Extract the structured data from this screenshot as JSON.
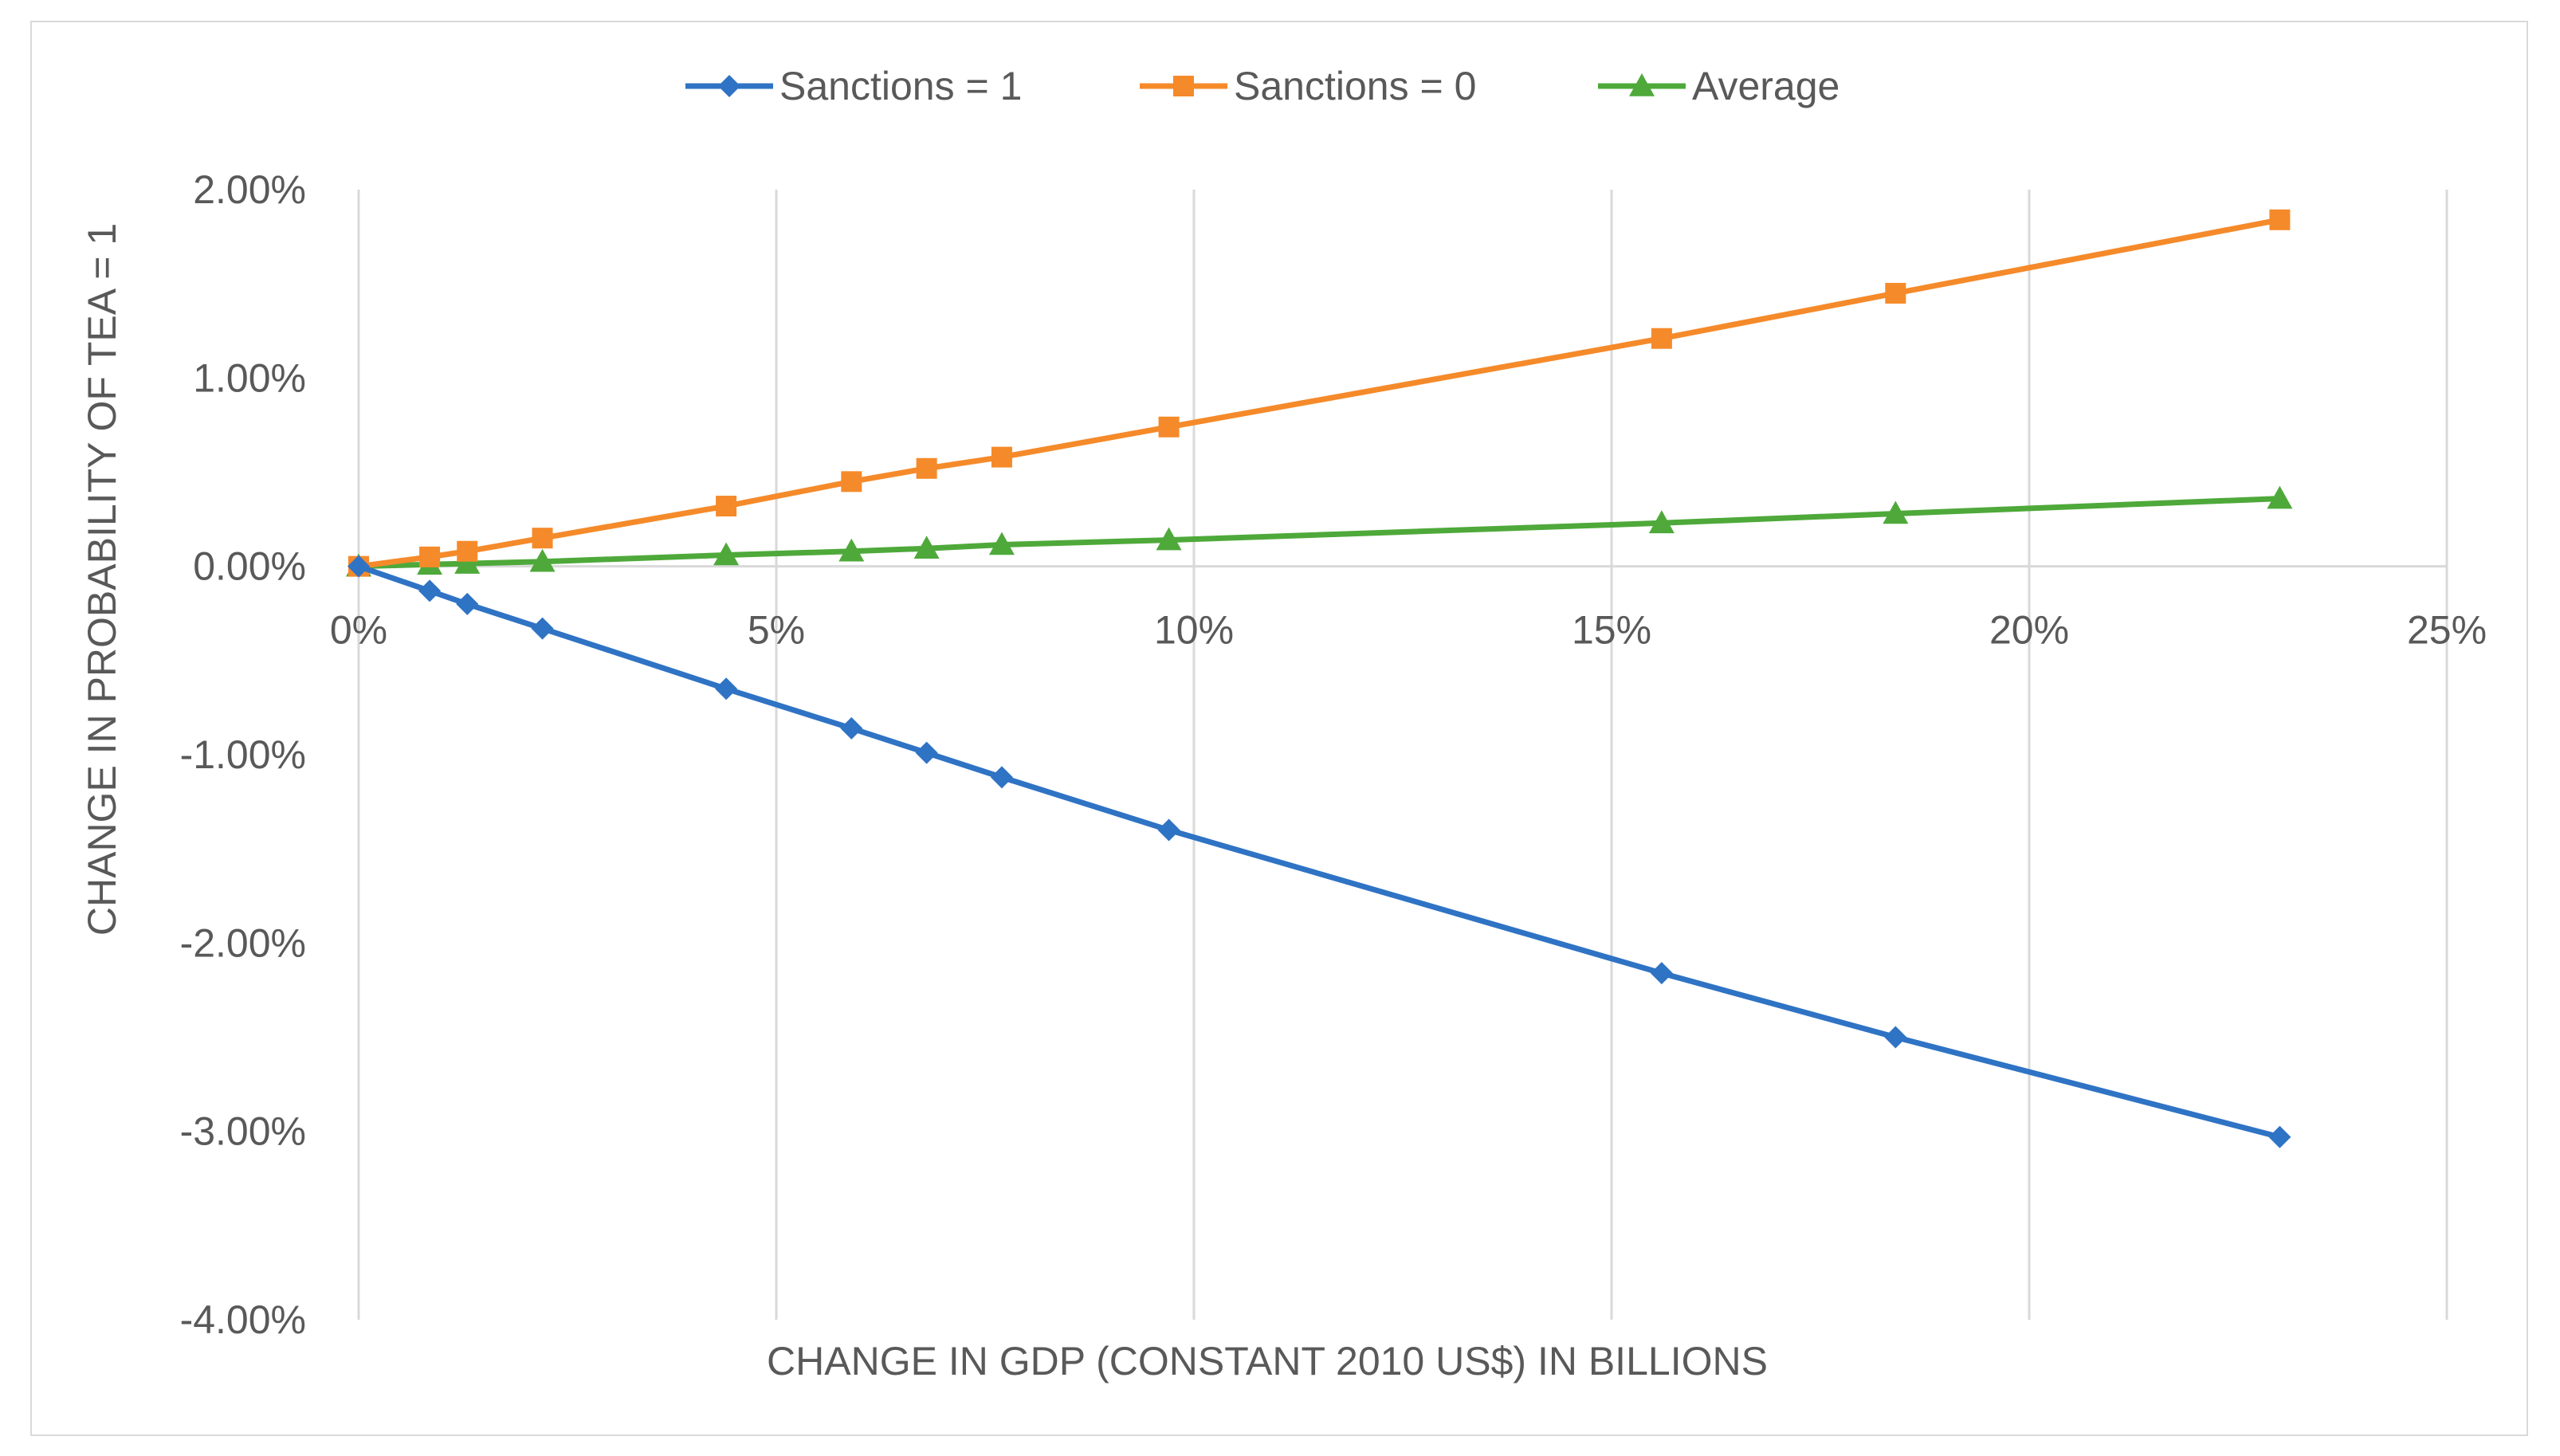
{
  "chart_data": {
    "type": "line",
    "title": "",
    "xlabel": "CHANGE IN GDP (CONSTANT 2010 US$) IN BILLIONS",
    "ylabel": "CHANGE IN PROBABILITY OF TEA = 1",
    "xlim": [
      0,
      25
    ],
    "ylim": [
      -4,
      2
    ],
    "x_ticks": [
      0,
      5,
      10,
      15,
      20,
      25
    ],
    "x_tick_labels": [
      "0%",
      "5%",
      "10%",
      "15%",
      "20%",
      "25%"
    ],
    "y_ticks": [
      2,
      1,
      0,
      -1,
      -2,
      -3,
      -4
    ],
    "y_tick_labels": [
      "2.00%",
      "1.00%",
      "0.00%",
      "-1.00%",
      "-2.00%",
      "-3.00%",
      "-4.00%"
    ],
    "grid": "vertical",
    "legend_position": "top-center",
    "x": [
      0,
      0.85,
      1.3,
      2.2,
      4.4,
      5.9,
      6.8,
      7.7,
      9.7,
      15.6,
      18.4,
      23.0
    ],
    "series": [
      {
        "name": "Sanctions = 1",
        "color": "#2f73c4",
        "marker": "diamond",
        "values": [
          0.0,
          -0.13,
          -0.2,
          -0.33,
          -0.65,
          -0.86,
          -0.99,
          -1.12,
          -1.4,
          -2.16,
          -2.5,
          -3.03
        ]
      },
      {
        "name": "Sanctions = 0",
        "color": "#f58a2a",
        "marker": "square",
        "values": [
          0.0,
          0.05,
          0.08,
          0.15,
          0.32,
          0.45,
          0.52,
          0.58,
          0.74,
          1.21,
          1.45,
          1.84
        ]
      },
      {
        "name": "Average",
        "color": "#4ea93a",
        "marker": "triangle",
        "values": [
          0.0,
          0.01,
          0.015,
          0.025,
          0.06,
          0.08,
          0.095,
          0.115,
          0.14,
          0.23,
          0.28,
          0.36
        ]
      }
    ]
  }
}
